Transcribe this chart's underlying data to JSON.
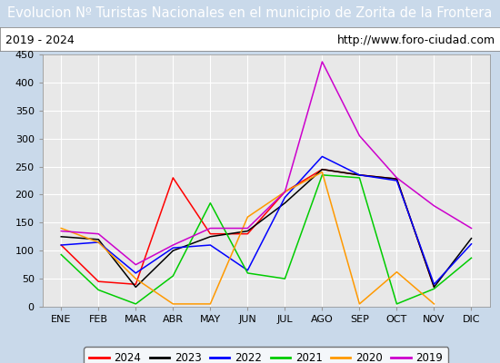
{
  "title": "Evolucion Nº Turistas Nacionales en el municipio de Zorita de la Frontera",
  "subtitle_left": "2019 - 2024",
  "subtitle_right": "http://www.foro-ciudad.com",
  "months": [
    "ENE",
    "FEB",
    "MAR",
    "ABR",
    "MAY",
    "JUN",
    "JUL",
    "AGO",
    "SEP",
    "OCT",
    "NOV",
    "DIC"
  ],
  "ylim": [
    0,
    450
  ],
  "yticks": [
    0,
    50,
    100,
    150,
    200,
    250,
    300,
    350,
    400,
    450
  ],
  "series": {
    "2024": {
      "color": "#ff0000",
      "data": [
        110,
        45,
        40,
        230,
        130,
        130,
        205,
        245,
        235,
        228,
        35,
        null
      ]
    },
    "2023": {
      "color": "#000000",
      "data": [
        125,
        120,
        35,
        100,
        125,
        135,
        185,
        245,
        235,
        228,
        35,
        122
      ]
    },
    "2022": {
      "color": "#0000ff",
      "data": [
        110,
        115,
        60,
        105,
        110,
        65,
        195,
        268,
        235,
        225,
        40,
        112
      ]
    },
    "2021": {
      "color": "#00cc00",
      "data": [
        93,
        30,
        5,
        55,
        185,
        60,
        50,
        235,
        230,
        5,
        32,
        87
      ]
    },
    "2020": {
      "color": "#ff9900",
      "data": [
        140,
        115,
        50,
        5,
        5,
        160,
        205,
        240,
        5,
        62,
        5,
        null
      ]
    },
    "2019": {
      "color": "#cc00cc",
      "data": [
        135,
        130,
        75,
        110,
        140,
        140,
        205,
        437,
        305,
        230,
        180,
        140
      ]
    }
  },
  "legend_order": [
    "2024",
    "2023",
    "2022",
    "2021",
    "2020",
    "2019"
  ],
  "title_bg_color": "#4472c4",
  "title_text_color": "#ffffff",
  "plot_bg_color": "#e8e8e8",
  "outer_bg_color": "#c9d9ea",
  "grid_color": "#ffffff",
  "subtitle_box_color": "#ffffff",
  "title_fontsize": 10.5,
  "subtitle_fontsize": 9,
  "tick_fontsize": 8,
  "legend_fontsize": 8.5
}
